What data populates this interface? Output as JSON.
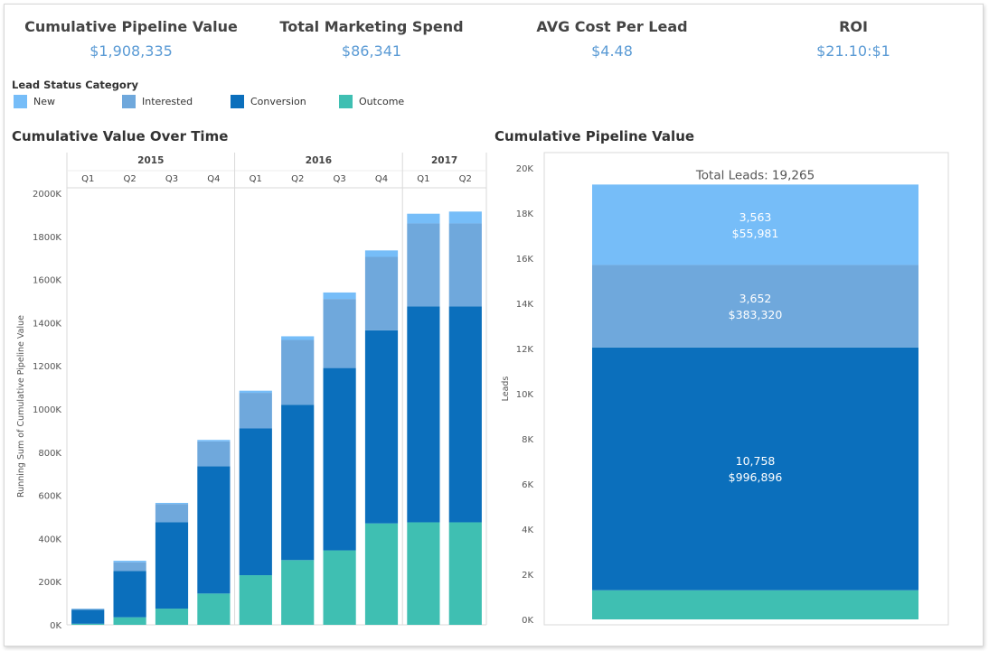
{
  "kpis": [
    {
      "title": "Cumulative Pipeline Value",
      "value": "$1,908,335"
    },
    {
      "title": "Total Marketing Spend",
      "value": "$86,341"
    },
    {
      "title": "AVG Cost Per Lead",
      "value": "$4.48"
    },
    {
      "title": "ROI",
      "value": "$21.10:$1"
    }
  ],
  "legend": {
    "title": "Lead Status Category",
    "items": [
      {
        "label": "New",
        "color": "#76bdf8"
      },
      {
        "label": "Interested",
        "color": "#6fa8dc"
      },
      {
        "label": "Conversion",
        "color": "#0b6fbc"
      },
      {
        "label": "Outcome",
        "color": "#3fbfb2"
      }
    ]
  },
  "titles": {
    "left": "Cumulative Value Over Time",
    "right": "Cumulative Pipeline Value"
  },
  "chart_data": [
    {
      "type": "bar",
      "stacked": true,
      "title": "Cumulative Value Over Time",
      "ylabel": "Running Sum of Cumulative Pipeline Value",
      "ylim": [
        0,
        2000000
      ],
      "yticks": [
        "0K",
        "200K",
        "400K",
        "600K",
        "800K",
        "1000K",
        "1200K",
        "1400K",
        "1600K",
        "1800K",
        "2000K"
      ],
      "years": [
        {
          "label": "2015",
          "quarters": [
            "Q1",
            "Q2",
            "Q3",
            "Q4"
          ]
        },
        {
          "label": "2016",
          "quarters": [
            "Q1",
            "Q2",
            "Q3",
            "Q4"
          ]
        },
        {
          "label": "2017",
          "quarters": [
            "Q1",
            "Q2"
          ]
        }
      ],
      "categories": [
        "2015 Q1",
        "2015 Q2",
        "2015 Q3",
        "2015 Q4",
        "2016 Q1",
        "2016 Q2",
        "2016 Q3",
        "2016 Q4",
        "2017 Q1",
        "2017 Q2"
      ],
      "series": [
        {
          "name": "Outcome",
          "values": [
            5000,
            35000,
            75000,
            145000,
            230000,
            300000,
            345000,
            470000,
            475000,
            475000
          ]
        },
        {
          "name": "Conversion",
          "values": [
            65000,
            215000,
            400000,
            590000,
            680000,
            720000,
            845000,
            895000,
            1000000,
            1000000
          ]
        },
        {
          "name": "Interested",
          "values": [
            4000,
            40000,
            85000,
            115000,
            165000,
            300000,
            320000,
            340000,
            385000,
            385000
          ]
        },
        {
          "name": "New",
          "values": [
            1000,
            7000,
            5000,
            7000,
            10000,
            17000,
            30000,
            30000,
            45000,
            55000
          ]
        }
      ],
      "grid": false
    },
    {
      "type": "bar",
      "stacked": true,
      "title": "Cumulative Pipeline Value",
      "ylabel": "Leads",
      "ylim": [
        0,
        21000
      ],
      "yticks": [
        "0K",
        "2K",
        "4K",
        "6K",
        "8K",
        "10K",
        "12K",
        "14K",
        "16K",
        "18K",
        "20K"
      ],
      "total_label": "Total Leads: 19,265",
      "segments": [
        {
          "name": "Outcome",
          "leads": 1292,
          "label1": "",
          "label2": ""
        },
        {
          "name": "Conversion",
          "leads": 10758,
          "label1": "10,758",
          "label2": "$996,896"
        },
        {
          "name": "Interested",
          "leads": 3652,
          "label1": "3,652",
          "label2": "$383,320"
        },
        {
          "name": "New",
          "leads": 3563,
          "label1": "3,563",
          "label2": "$55,981"
        }
      ],
      "grid": false
    }
  ]
}
